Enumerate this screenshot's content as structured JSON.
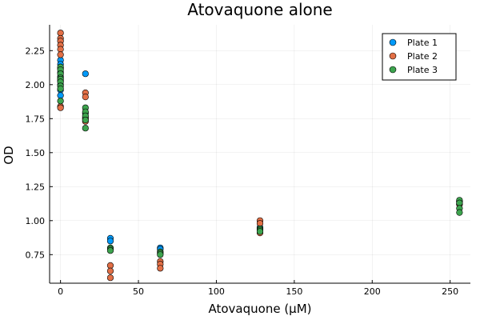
{
  "chart_data": {
    "type": "scatter",
    "title": "Atovaquone alone",
    "xlabel": "Atovaquone (μM)",
    "ylabel": "OD",
    "xlim": [
      -7,
      263
    ],
    "ylim": [
      0.54,
      2.44
    ],
    "xticks": [
      0,
      50,
      100,
      150,
      200,
      250
    ],
    "yticks": [
      0.75,
      1.0,
      1.25,
      1.5,
      1.75,
      2.0,
      2.25
    ],
    "ytick_labels": [
      "0.75",
      "1.00",
      "1.25",
      "1.50",
      "1.75",
      "2.00",
      "2.25"
    ],
    "grid": true,
    "legend_position": "top-right",
    "series": [
      {
        "name": "Plate 1",
        "color": "#009AFA",
        "points": [
          [
            0,
            2.18
          ],
          [
            0,
            2.15
          ],
          [
            0,
            2.12
          ],
          [
            0,
            2.09
          ],
          [
            0,
            2.06
          ],
          [
            0,
            2.03
          ],
          [
            0,
            2.0
          ],
          [
            0,
            1.96
          ],
          [
            0,
            1.92
          ],
          [
            16,
            2.08
          ],
          [
            16,
            1.79
          ],
          [
            16,
            1.76
          ],
          [
            32,
            0.87
          ],
          [
            32,
            0.85
          ],
          [
            64,
            0.8
          ],
          [
            64,
            0.79
          ],
          [
            128,
            0.95
          ],
          [
            128,
            0.94
          ],
          [
            256,
            1.14
          ],
          [
            256,
            1.12
          ]
        ]
      },
      {
        "name": "Plate 2",
        "color": "#E26F46",
        "points": [
          [
            0,
            2.38
          ],
          [
            0,
            2.34
          ],
          [
            0,
            2.32
          ],
          [
            0,
            2.29
          ],
          [
            0,
            2.26
          ],
          [
            0,
            2.22
          ],
          [
            0,
            1.84
          ],
          [
            0,
            1.83
          ],
          [
            16,
            1.94
          ],
          [
            16,
            1.91
          ],
          [
            16,
            1.75
          ],
          [
            16,
            1.73
          ],
          [
            32,
            0.67
          ],
          [
            32,
            0.63
          ],
          [
            32,
            0.58
          ],
          [
            64,
            0.7
          ],
          [
            64,
            0.68
          ],
          [
            64,
            0.65
          ],
          [
            128,
            1.0
          ],
          [
            128,
            0.98
          ],
          [
            128,
            0.91
          ],
          [
            256,
            1.14
          ],
          [
            256,
            1.12
          ]
        ]
      },
      {
        "name": "Plate 3",
        "color": "#3DA44E",
        "points": [
          [
            0,
            2.13
          ],
          [
            0,
            2.11
          ],
          [
            0,
            2.08
          ],
          [
            0,
            2.05
          ],
          [
            0,
            2.04
          ],
          [
            0,
            2.02
          ],
          [
            0,
            1.99
          ],
          [
            0,
            1.97
          ],
          [
            0,
            1.88
          ],
          [
            16,
            1.83
          ],
          [
            16,
            1.8
          ],
          [
            16,
            1.77
          ],
          [
            16,
            1.74
          ],
          [
            16,
            1.68
          ],
          [
            32,
            0.8
          ],
          [
            32,
            0.79
          ],
          [
            32,
            0.78
          ],
          [
            64,
            0.77
          ],
          [
            64,
            0.76
          ],
          [
            64,
            0.75
          ],
          [
            128,
            0.94
          ],
          [
            128,
            0.93
          ],
          [
            128,
            0.92
          ],
          [
            256,
            1.15
          ],
          [
            256,
            1.13
          ],
          [
            256,
            1.09
          ],
          [
            256,
            1.06
          ]
        ]
      }
    ]
  }
}
